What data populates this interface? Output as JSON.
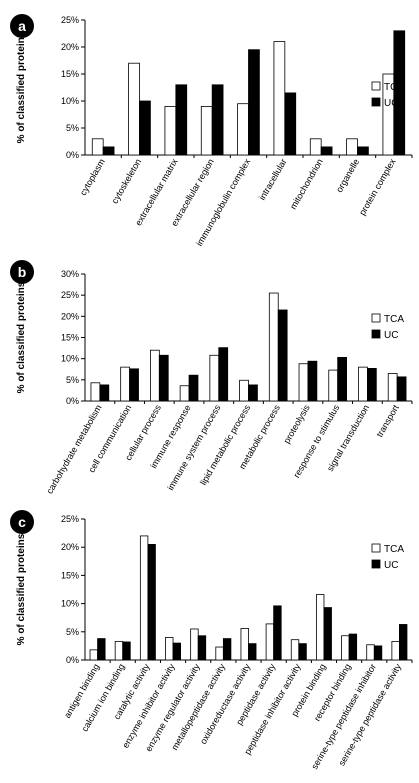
{
  "colors": {
    "tca_fill": "#ffffff",
    "uc_fill": "#000000",
    "stroke": "#000000",
    "badge": "#000000"
  },
  "chart_data": [
    {
      "type": "bar",
      "panel_label": "a",
      "ylabel": "% of classified proteins",
      "ylim": [
        0,
        25
      ],
      "yticks": [
        "0%",
        "5%",
        "10%",
        "15%",
        "20%",
        "25%"
      ],
      "categories": [
        "cytoplasm",
        "cytoskeleton",
        "extracellular matrix",
        "extracellular region",
        "immunoglobulin complex",
        "intracellular",
        "mitochondrion",
        "organelle",
        "protein complex"
      ],
      "series": [
        {
          "name": "TCA",
          "values": [
            3.0,
            17.0,
            9.0,
            9.0,
            9.5,
            21.0,
            3.0,
            3.0,
            15.0
          ]
        },
        {
          "name": "UC",
          "values": [
            1.5,
            10.0,
            13.0,
            13.0,
            19.5,
            11.5,
            1.5,
            1.5,
            23.0
          ]
        }
      ],
      "legend": "right"
    },
    {
      "type": "bar",
      "panel_label": "b",
      "ylabel": "% of classified proteins",
      "ylim": [
        0,
        30
      ],
      "yticks": [
        "0%",
        "5%",
        "10%",
        "15%",
        "20%",
        "25%",
        "30%"
      ],
      "categories": [
        "carbohydrate metabolism",
        "cell communication",
        "cellular process",
        "immune response",
        "immune system process",
        "lipid metabolic process",
        "metabolic process",
        "proteolysis",
        "response to stimulus",
        "signal transduction",
        "transport"
      ],
      "series": [
        {
          "name": "TCA",
          "values": [
            4.3,
            8.0,
            12.0,
            3.6,
            10.8,
            4.9,
            25.5,
            8.8,
            7.3,
            8.0,
            6.5
          ]
        },
        {
          "name": "UC",
          "values": [
            3.8,
            7.6,
            10.8,
            6.1,
            12.6,
            3.8,
            21.5,
            9.4,
            10.3,
            7.7,
            5.7
          ]
        }
      ],
      "legend": "right"
    },
    {
      "type": "bar",
      "panel_label": "c",
      "ylabel": "% of classified proteins",
      "ylim": [
        0,
        25
      ],
      "yticks": [
        "0%",
        "5%",
        "10%",
        "15%",
        "20%",
        "25%"
      ],
      "categories": [
        "antigen binding",
        "calcium ion binding",
        "catalytic activity",
        "enzyme inhibitor activity",
        "enzyme regulator activity",
        "metallopeptidase activity",
        "oxidoreductase activity",
        "peptidase activity",
        "peptidase inhibitor activity",
        "protein binding",
        "receptor binding",
        "serine-type peptidase inhibitor",
        "serine-type peptidase activity"
      ],
      "series": [
        {
          "name": "TCA",
          "values": [
            1.8,
            3.3,
            22.0,
            4.0,
            5.5,
            2.3,
            5.6,
            6.4,
            3.6,
            11.6,
            4.3,
            2.7,
            3.3
          ]
        },
        {
          "name": "UC",
          "values": [
            3.8,
            3.2,
            20.5,
            3.0,
            4.3,
            3.8,
            2.9,
            9.6,
            2.9,
            9.3,
            4.6,
            2.5,
            6.3
          ]
        }
      ],
      "legend": "right"
    }
  ]
}
